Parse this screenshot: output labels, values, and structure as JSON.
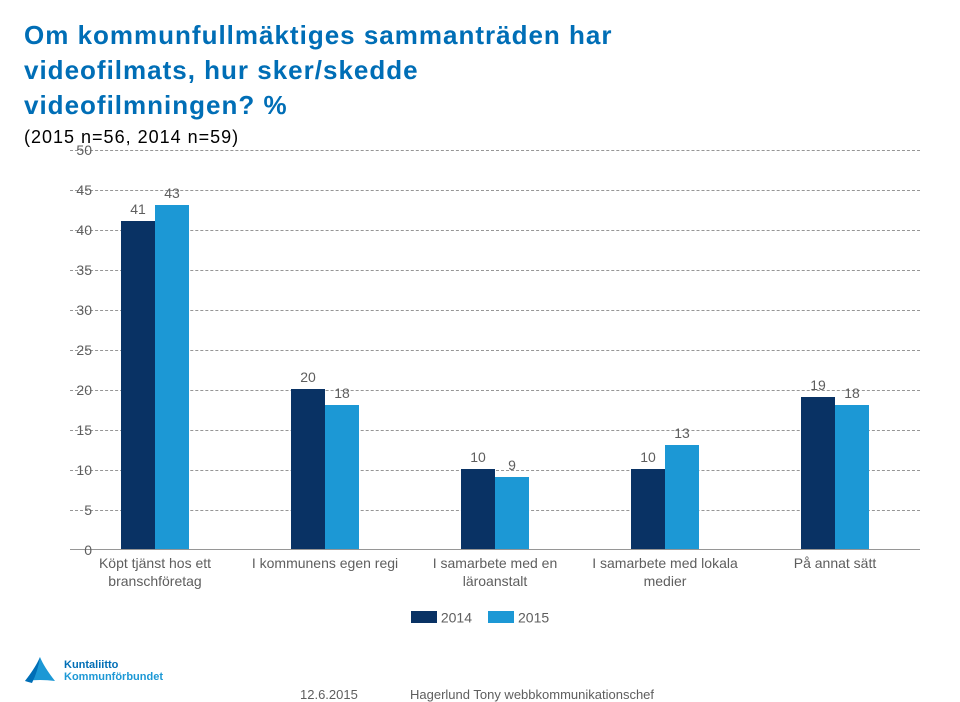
{
  "title": {
    "line1": "Om kommunfullmäktiges sammanträden har",
    "line2": "videofilmats, hur sker/skedde",
    "line3": "videofilmningen? %",
    "color": "#006eb6",
    "fontsize": 26
  },
  "subtitle": {
    "text": "(2015 n=56, 2014 n=59)",
    "color": "#000000",
    "fontsize": 18
  },
  "chart": {
    "type": "bar",
    "ylim": [
      0,
      50
    ],
    "ytick_step": 5,
    "yticks": [
      0,
      5,
      10,
      15,
      20,
      25,
      30,
      35,
      40,
      45,
      50
    ],
    "grid_color": "#969696",
    "grid_dashes": [
      true,
      true,
      true,
      true,
      true,
      true,
      true,
      true,
      true,
      true
    ],
    "background_color": "#ffffff",
    "label_fontsize": 14,
    "tick_fontsize": 14,
    "xtick_fontsize": 14,
    "bar_width": 0.35,
    "categories": [
      "Köpt tjänst hos ett branschföretag",
      "I kommunens egen regi",
      "I samarbete med en läroanstalt",
      "I samarbete med lokala medier",
      "På annat sätt"
    ],
    "series": [
      {
        "name": "2014",
        "color": "#093264",
        "values": [
          41,
          20,
          10,
          10,
          19
        ]
      },
      {
        "name": "2015",
        "color": "#1c98d5",
        "values": [
          43,
          18,
          9,
          13,
          18
        ]
      }
    ]
  },
  "legend": {
    "items": [
      {
        "label": "2014",
        "color": "#093264"
      },
      {
        "label": "2015",
        "color": "#1c98d5"
      }
    ],
    "fontsize": 14
  },
  "footer": {
    "date": "12.6.2015",
    "author": "Hagerlund Tony webbkommunikationschef",
    "fontsize": 13
  },
  "logo": {
    "line1": "Kuntaliitto",
    "line2": "Kommunförbundet",
    "fontsize": 11,
    "color1": "#006eb6",
    "color2": "#1c98d5"
  }
}
